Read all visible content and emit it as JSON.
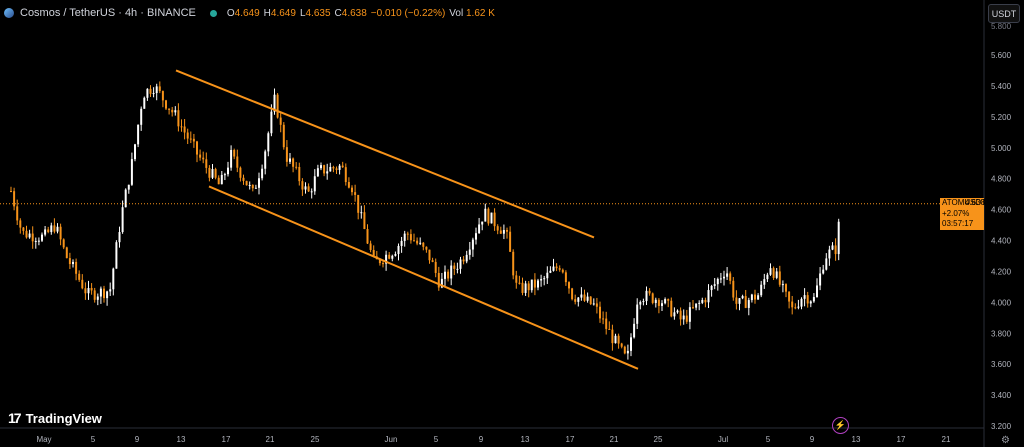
{
  "header": {
    "symbol_title": "Cosmos / TetherUS · 4h · BINANCE",
    "ohlc": [
      {
        "key": "O",
        "value": "4.649"
      },
      {
        "key": "H",
        "value": "4.649"
      },
      {
        "key": "L",
        "value": "4.635"
      },
      {
        "key": "C",
        "value": "4.638"
      },
      {
        "key": "",
        "value": "−0.010 (−0.22%)"
      }
    ],
    "volume_label": "Vol",
    "volume_value": "1.62 K"
  },
  "currency_button": "USDT",
  "branding": "TradingView",
  "price_label": {
    "ticker": "ATOMUSDT",
    "price": "4.638",
    "change": "+2.07%",
    "countdown": "03:57:17"
  },
  "colors": {
    "up": "#ffffff",
    "down": "#f7931a",
    "channel": "#f7931a",
    "price_line": "#f7931a"
  },
  "chart_data": {
    "type": "candlestick",
    "symbol": "ATOMUSDT",
    "interval": "4h",
    "ylim": [
      3.1,
      5.9
    ],
    "y_ticks": [
      "5.600",
      "5.400",
      "5.200",
      "5.000",
      "4.800",
      "4.600",
      "4.400",
      "4.200",
      "4.000",
      "3.800",
      "3.600",
      "3.400",
      "3.200"
    ],
    "y_top_tick_partial": "5.800",
    "x_ticks": [
      "May",
      "5",
      "9",
      "13",
      "17",
      "21",
      "25",
      "Jun",
      "5",
      "9",
      "13",
      "17",
      "21",
      "25",
      "Jul",
      "5",
      "9",
      "13",
      "17",
      "21"
    ],
    "last_price": 4.638,
    "trend_channel": {
      "upper": [
        {
          "x": "May 13",
          "y": 5.5
        },
        {
          "x": "Jun 20",
          "y": 4.42
        }
      ],
      "lower": [
        {
          "x": "May 16",
          "y": 4.75
        },
        {
          "x": "Jun 24",
          "y": 3.57
        }
      ]
    },
    "price_path": [
      {
        "x": "Apr 28",
        "y": 4.72
      },
      {
        "x": "Apr 29",
        "y": 4.45
      },
      {
        "x": "May 1",
        "y": 4.42
      },
      {
        "x": "May 2",
        "y": 4.5
      },
      {
        "x": "May 3",
        "y": 4.3
      },
      {
        "x": "May 5",
        "y": 4.05
      },
      {
        "x": "May 7",
        "y": 4.08
      },
      {
        "x": "May 8",
        "y": 4.55
      },
      {
        "x": "May 9",
        "y": 4.9
      },
      {
        "x": "May 10",
        "y": 5.35
      },
      {
        "x": "May 11",
        "y": 5.4
      },
      {
        "x": "May 13",
        "y": 5.2
      },
      {
        "x": "May 15",
        "y": 4.95
      },
      {
        "x": "May 17",
        "y": 4.75
      },
      {
        "x": "May 18",
        "y": 4.95
      },
      {
        "x": "May 20",
        "y": 4.7
      },
      {
        "x": "May 21",
        "y": 4.95
      },
      {
        "x": "May 22",
        "y": 5.32
      },
      {
        "x": "May 23",
        "y": 4.95
      },
      {
        "x": "May 25",
        "y": 4.7
      },
      {
        "x": "May 26",
        "y": 4.85
      },
      {
        "x": "May 28",
        "y": 4.88
      },
      {
        "x": "May 29",
        "y": 4.75
      },
      {
        "x": "May 31",
        "y": 4.25
      },
      {
        "x": "Jun 2",
        "y": 4.35
      },
      {
        "x": "Jun 3",
        "y": 4.45
      },
      {
        "x": "Jun 5",
        "y": 4.3
      },
      {
        "x": "Jun 6",
        "y": 4.12
      },
      {
        "x": "Jun 8",
        "y": 4.28
      },
      {
        "x": "Jun 10",
        "y": 4.58
      },
      {
        "x": "Jun 12",
        "y": 4.45
      },
      {
        "x": "Jun 13",
        "y": 4.08
      },
      {
        "x": "Jun 15",
        "y": 4.12
      },
      {
        "x": "Jun 17",
        "y": 4.25
      },
      {
        "x": "Jun 18",
        "y": 4.05
      },
      {
        "x": "Jun 20",
        "y": 3.98
      },
      {
        "x": "Jun 21",
        "y": 3.85
      },
      {
        "x": "Jun 23",
        "y": 3.62
      },
      {
        "x": "Jun 24",
        "y": 4.05
      },
      {
        "x": "Jun 26",
        "y": 4.02
      },
      {
        "x": "Jun 28",
        "y": 3.88
      },
      {
        "x": "Jun 30",
        "y": 4.02
      },
      {
        "x": "Jul 2",
        "y": 4.22
      },
      {
        "x": "Jul 3",
        "y": 3.98
      },
      {
        "x": "Jul 5",
        "y": 4.05
      },
      {
        "x": "Jul 6",
        "y": 4.25
      },
      {
        "x": "Jul 8",
        "y": 3.95
      },
      {
        "x": "Jul 9",
        "y": 4.05
      },
      {
        "x": "Jul 10",
        "y": 4.02
      },
      {
        "x": "Jul 11",
        "y": 4.3
      },
      {
        "x": "Jul 12",
        "y": 4.35
      },
      {
        "x": "Jul 12 pm",
        "y": 4.64
      }
    ]
  }
}
